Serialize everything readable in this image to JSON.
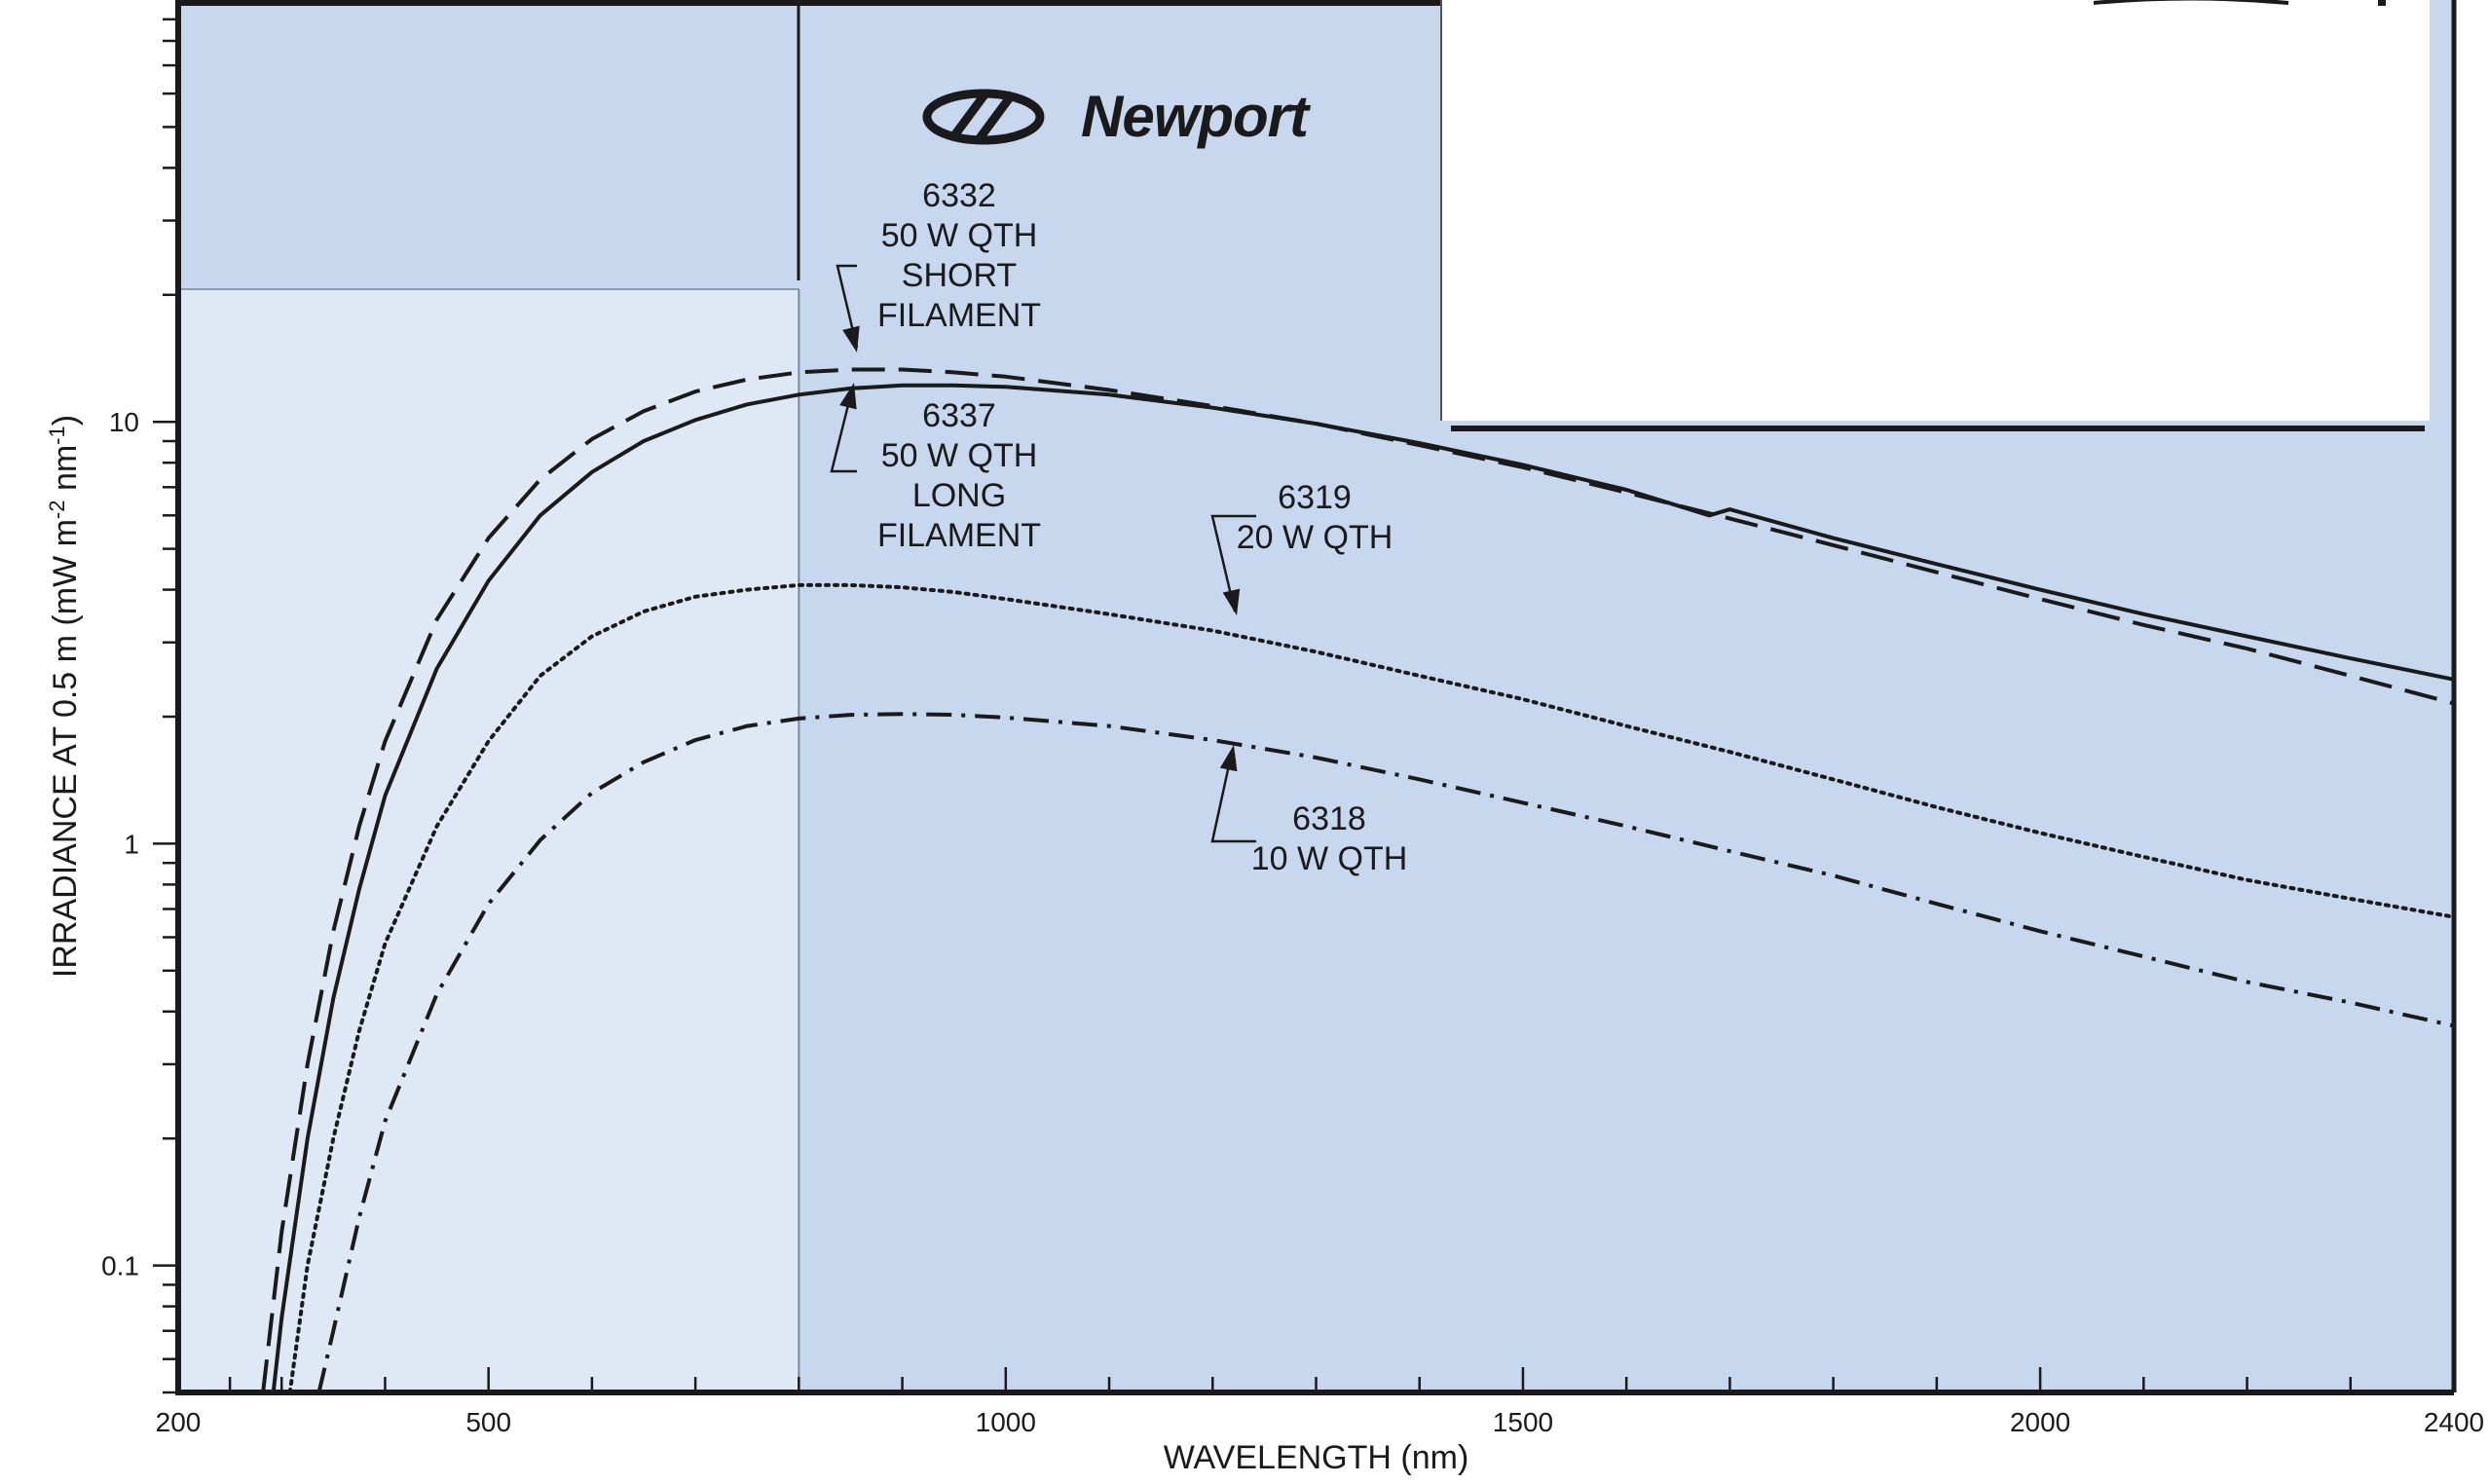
{
  "chart_data": {
    "type": "line",
    "title": "",
    "xlabel": "WAVELENGTH (nm)",
    "ylabel": "IRRADIANCE AT 0.5 m (mW m-2 nm-1)",
    "ylabel_parts": {
      "a": "IRRADIANCE AT 0.5 m (mW m",
      "sup1": "-2",
      "b": " nm",
      "sup2": "-1",
      "c": ")"
    },
    "xlim": [
      200,
      2400
    ],
    "ylim": [
      0.05,
      100
    ],
    "yscale": "log",
    "grid": false,
    "x_ticks": [
      200,
      500,
      1000,
      1500,
      2000,
      2400
    ],
    "x_tick_labels": [
      "200",
      "500",
      "1000",
      "1500",
      "2000",
      "2400"
    ],
    "y_ticks": [
      0.1,
      1,
      10
    ],
    "y_tick_labels": [
      "0.1",
      "1",
      "10"
    ],
    "logo": "Newport",
    "colors": {
      "panel_light": "#dfe8f5",
      "panel_dark": "#c6d7ee",
      "line": "#1a1a1a"
    },
    "series": [
      {
        "label_lines": [
          "6332",
          "50 W QTH",
          "SHORT",
          "FILAMENT"
        ],
        "style": "dashed",
        "x": [
          282,
          300,
          325,
          350,
          375,
          400,
          450,
          500,
          550,
          600,
          650,
          700,
          750,
          800,
          850,
          900,
          950,
          1000,
          1100,
          1200,
          1300,
          1400,
          1500,
          1600,
          1700,
          1800,
          1900,
          2000,
          2100,
          2200,
          2300,
          2400
        ],
        "y": [
          0.05,
          0.12,
          0.3,
          0.62,
          1.1,
          1.75,
          3.4,
          5.3,
          7.3,
          9.1,
          10.6,
          11.8,
          12.6,
          13.1,
          13.3,
          13.3,
          13.1,
          12.8,
          11.9,
          10.9,
          9.9,
          8.8,
          7.8,
          6.8,
          5.9,
          5.1,
          4.4,
          3.8,
          3.3,
          2.9,
          2.5,
          2.15
        ]
      },
      {
        "label_lines": [
          "6337",
          "50 W QTH",
          "LONG",
          "FILAMENT"
        ],
        "style": "solid",
        "x": [
          292,
          300,
          325,
          350,
          375,
          400,
          450,
          500,
          550,
          600,
          650,
          700,
          750,
          800,
          850,
          900,
          950,
          1000,
          1100,
          1200,
          1300,
          1400,
          1500,
          1600,
          1680,
          1700,
          1800,
          1900,
          2000,
          2100,
          2200,
          2300,
          2400
        ],
        "y": [
          0.05,
          0.075,
          0.2,
          0.43,
          0.78,
          1.3,
          2.6,
          4.2,
          6.0,
          7.6,
          9.0,
          10.1,
          11.0,
          11.6,
          12.0,
          12.2,
          12.2,
          12.1,
          11.6,
          10.8,
          9.9,
          8.9,
          7.9,
          6.9,
          6.0,
          6.2,
          5.3,
          4.6,
          4.0,
          3.5,
          3.1,
          2.75,
          2.45
        ]
      },
      {
        "label_lines": [
          "6319",
          "20 W QTH"
        ],
        "style": "dotted",
        "x": [
          308,
          325,
          350,
          375,
          400,
          450,
          500,
          550,
          600,
          650,
          700,
          750,
          800,
          850,
          900,
          950,
          1000,
          1100,
          1200,
          1300,
          1400,
          1500,
          1600,
          1700,
          1800,
          1900,
          2000,
          2100,
          2200,
          2300,
          2400
        ],
        "y": [
          0.05,
          0.1,
          0.2,
          0.36,
          0.58,
          1.1,
          1.75,
          2.5,
          3.1,
          3.55,
          3.85,
          4.0,
          4.1,
          4.1,
          4.05,
          3.95,
          3.8,
          3.5,
          3.2,
          2.85,
          2.5,
          2.2,
          1.9,
          1.65,
          1.42,
          1.22,
          1.06,
          0.93,
          0.82,
          0.74,
          0.67
        ]
      },
      {
        "label_lines": [
          "6318",
          "10 W QTH"
        ],
        "style": "dashdot",
        "x": [
          336,
          350,
          375,
          400,
          450,
          500,
          550,
          600,
          650,
          700,
          750,
          800,
          850,
          900,
          950,
          1000,
          1100,
          1200,
          1300,
          1400,
          1500,
          1600,
          1700,
          1800,
          1900,
          2000,
          2100,
          2200,
          2300,
          2400
        ],
        "y": [
          0.05,
          0.07,
          0.13,
          0.22,
          0.44,
          0.72,
          1.02,
          1.32,
          1.56,
          1.76,
          1.9,
          1.98,
          2.02,
          2.03,
          2.02,
          1.99,
          1.9,
          1.76,
          1.6,
          1.42,
          1.25,
          1.1,
          0.96,
          0.84,
          0.72,
          0.62,
          0.54,
          0.47,
          0.42,
          0.37
        ]
      }
    ]
  }
}
